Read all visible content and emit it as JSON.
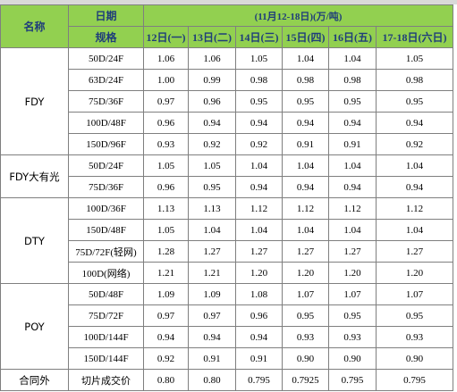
{
  "header": {
    "name_label": "名称",
    "date_label": "日期",
    "spec_label": "规格",
    "title": "(11月12-18日)(万/吨)",
    "days": [
      "12日(一)",
      "13日(二)",
      "14日(三)",
      "15日(四)",
      "16日(五)",
      "17-18日(六日)"
    ]
  },
  "groups": [
    {
      "name": "FDY",
      "rows": [
        {
          "spec": "50D/24F",
          "values": [
            "1.06",
            "1.06",
            "1.05",
            "1.04",
            "1.04",
            "1.05"
          ]
        },
        {
          "spec": "63D/24F",
          "values": [
            "1.00",
            "0.99",
            "0.98",
            "0.98",
            "0.98",
            "0.98"
          ]
        },
        {
          "spec": "75D/36F",
          "values": [
            "0.97",
            "0.96",
            "0.95",
            "0.95",
            "0.95",
            "0.95"
          ]
        },
        {
          "spec": "100D/48F",
          "values": [
            "0.96",
            "0.94",
            "0.94",
            "0.94",
            "0.94",
            "0.94"
          ]
        },
        {
          "spec": "150D/96F",
          "values": [
            "0.93",
            "0.92",
            "0.92",
            "0.91",
            "0.91",
            "0.92"
          ]
        }
      ]
    },
    {
      "name": "FDY大有光",
      "rows": [
        {
          "spec": "50D/24F",
          "values": [
            "1.05",
            "1.05",
            "1.04",
            "1.04",
            "1.04",
            "1.04"
          ]
        },
        {
          "spec": "75D/36F",
          "values": [
            "0.96",
            "0.95",
            "0.94",
            "0.94",
            "0.94",
            "0.94"
          ]
        }
      ]
    },
    {
      "name": "DTY",
      "rows": [
        {
          "spec": "100D/36F",
          "values": [
            "1.13",
            "1.13",
            "1.12",
            "1.12",
            "1.12",
            "1.12"
          ]
        },
        {
          "spec": "150D/48F",
          "values": [
            "1.05",
            "1.04",
            "1.04",
            "1.04",
            "1.04",
            "1.04"
          ]
        },
        {
          "spec": "75D/72F(轻网)",
          "values": [
            "1.28",
            "1.27",
            "1.27",
            "1.27",
            "1.27",
            "1.27"
          ]
        },
        {
          "spec": "100D(网络)",
          "values": [
            "1.21",
            "1.21",
            "1.20",
            "1.20",
            "1.20",
            "1.20"
          ]
        }
      ]
    },
    {
      "name": "POY",
      "rows": [
        {
          "spec": "50D/48F",
          "values": [
            "1.09",
            "1.09",
            "1.08",
            "1.07",
            "1.07",
            "1.07"
          ]
        },
        {
          "spec": "75D/72F",
          "values": [
            "0.97",
            "0.97",
            "0.96",
            "0.95",
            "0.95",
            "0.95"
          ]
        },
        {
          "spec": "100D/144F",
          "values": [
            "0.94",
            "0.94",
            "0.94",
            "0.93",
            "0.93",
            "0.93"
          ]
        },
        {
          "spec": "150D/144F",
          "values": [
            "0.92",
            "0.91",
            "0.91",
            "0.90",
            "0.90",
            "0.90"
          ]
        }
      ]
    },
    {
      "name": "合同外",
      "rows": [
        {
          "spec": "切片成交价",
          "values": [
            "0.80",
            "0.80",
            "0.795",
            "0.7925",
            "0.795",
            "0.795"
          ]
        }
      ]
    }
  ]
}
